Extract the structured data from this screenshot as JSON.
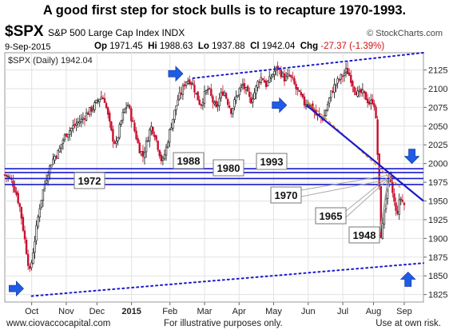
{
  "headline": "A good first step for stock bulls is to recapture 1970-1993.",
  "header": {
    "symbol": "$SPX",
    "name": "S&P 500 Large Cap Index INDX",
    "brand": "© StockCharts.com",
    "date": "9-Sep-2015",
    "open_label": "Op",
    "open": "1971.45",
    "high_label": "Hi",
    "high": "1988.63",
    "low_label": "Lo",
    "low": "1937.88",
    "close_label": "Cl",
    "close": "1942.04",
    "chg_label": "Chg",
    "chg": "-27.37 (-1.39%)"
  },
  "legend": "$SPX (Daily) 1942.04",
  "footer": {
    "left": "www.ciovaccocapital.com",
    "center": "For illustrative purposes only.",
    "right": "Use at own risk."
  },
  "chart_data": {
    "type": "candlestick",
    "ylim": [
      1815,
      2148
    ],
    "y_ticks": [
      1825,
      1850,
      1875,
      1900,
      1925,
      1950,
      1975,
      2000,
      2025,
      2050,
      2075,
      2100,
      2125
    ],
    "x_tick_labels": [
      "Oct",
      "Nov",
      "Dec",
      "2015",
      "Feb",
      "Mar",
      "Apr",
      "May",
      "Jun",
      "Jul",
      "Aug",
      "Sep"
    ],
    "x_tick_bold": [
      false,
      false,
      false,
      true,
      false,
      false,
      false,
      false,
      false,
      false,
      false,
      false
    ],
    "x_tick_positions": [
      0.07,
      0.16,
      0.24,
      0.33,
      0.43,
      0.52,
      0.61,
      0.7,
      0.79,
      0.88,
      0.96,
      1.04
    ],
    "grid": true,
    "support_levels": [
      1972,
      1980,
      1988,
      1993
    ],
    "level_labels": [
      {
        "text": "1972",
        "value": 1972
      },
      {
        "text": "1988",
        "value": 1988
      },
      {
        "text": "1980",
        "value": 1980
      },
      {
        "text": "1993",
        "value": 1993
      }
    ],
    "low_labels": [
      {
        "text": "1970",
        "value": 1970
      },
      {
        "text": "1965",
        "value": 1965
      },
      {
        "text": "1948",
        "value": 1948
      }
    ],
    "price_path": [
      [
        0.0,
        1985
      ],
      [
        0.01,
        1982
      ],
      [
        0.02,
        1975
      ],
      [
        0.03,
        1960
      ],
      [
        0.04,
        1940
      ],
      [
        0.05,
        1905
      ],
      [
        0.06,
        1870
      ],
      [
        0.065,
        1855
      ],
      [
        0.07,
        1870
      ],
      [
        0.08,
        1905
      ],
      [
        0.09,
        1940
      ],
      [
        0.1,
        1965
      ],
      [
        0.11,
        1985
      ],
      [
        0.12,
        2000
      ],
      [
        0.13,
        2010
      ],
      [
        0.14,
        2015
      ],
      [
        0.15,
        2030
      ],
      [
        0.16,
        2040
      ],
      [
        0.17,
        2045
      ],
      [
        0.18,
        2050
      ],
      [
        0.19,
        2055
      ],
      [
        0.2,
        2058
      ],
      [
        0.21,
        2065
      ],
      [
        0.22,
        2070
      ],
      [
        0.23,
        2075
      ],
      [
        0.24,
        2082
      ],
      [
        0.25,
        2090
      ],
      [
        0.26,
        2085
      ],
      [
        0.27,
        2060
      ],
      [
        0.28,
        2035
      ],
      [
        0.29,
        2025
      ],
      [
        0.3,
        2050
      ],
      [
        0.31,
        2070
      ],
      [
        0.32,
        2080
      ],
      [
        0.33,
        2060
      ],
      [
        0.34,
        2040
      ],
      [
        0.35,
        2020
      ],
      [
        0.36,
        2010
      ],
      [
        0.37,
        2030
      ],
      [
        0.38,
        2050
      ],
      [
        0.39,
        2040
      ],
      [
        0.4,
        2020
      ],
      [
        0.41,
        2000
      ],
      [
        0.42,
        2020
      ],
      [
        0.43,
        2045
      ],
      [
        0.44,
        2065
      ],
      [
        0.45,
        2085
      ],
      [
        0.46,
        2095
      ],
      [
        0.47,
        2110
      ],
      [
        0.48,
        2112
      ],
      [
        0.49,
        2105
      ],
      [
        0.5,
        2090
      ],
      [
        0.51,
        2078
      ],
      [
        0.52,
        2092
      ],
      [
        0.53,
        2100
      ],
      [
        0.54,
        2085
      ],
      [
        0.55,
        2072
      ],
      [
        0.56,
        2088
      ],
      [
        0.57,
        2098
      ],
      [
        0.58,
        2083
      ],
      [
        0.59,
        2070
      ],
      [
        0.6,
        2085
      ],
      [
        0.61,
        2098
      ],
      [
        0.62,
        2105
      ],
      [
        0.63,
        2095
      ],
      [
        0.64,
        2083
      ],
      [
        0.65,
        2095
      ],
      [
        0.66,
        2110
      ],
      [
        0.67,
        2116
      ],
      [
        0.68,
        2105
      ],
      [
        0.69,
        2112
      ],
      [
        0.7,
        2122
      ],
      [
        0.71,
        2128
      ],
      [
        0.72,
        2120
      ],
      [
        0.73,
        2112
      ],
      [
        0.74,
        2118
      ],
      [
        0.75,
        2110
      ],
      [
        0.76,
        2098
      ],
      [
        0.77,
        2090
      ],
      [
        0.78,
        2080
      ],
      [
        0.79,
        2082
      ],
      [
        0.8,
        2075
      ],
      [
        0.81,
        2065
      ],
      [
        0.82,
        2062
      ],
      [
        0.83,
        2060
      ],
      [
        0.84,
        2078
      ],
      [
        0.85,
        2095
      ],
      [
        0.86,
        2105
      ],
      [
        0.87,
        2112
      ],
      [
        0.88,
        2118
      ],
      [
        0.89,
        2125
      ],
      [
        0.9,
        2115
      ],
      [
        0.91,
        2100
      ],
      [
        0.92,
        2092
      ],
      [
        0.93,
        2095
      ],
      [
        0.94,
        2088
      ],
      [
        0.95,
        2080
      ],
      [
        0.96,
        2085
      ],
      [
        0.965,
        2070
      ],
      [
        0.97,
        2020
      ],
      [
        0.975,
        1965
      ],
      [
        0.98,
        1895
      ],
      [
        0.985,
        1925
      ],
      [
        0.99,
        1950
      ],
      [
        0.995,
        1965
      ],
      [
        1.0,
        1985
      ],
      [
        1.01,
        1960
      ],
      [
        1.02,
        1930
      ],
      [
        1.03,
        1955
      ],
      [
        1.04,
        1945
      ]
    ],
    "upper_channel": [
      [
        0.49,
        2114
      ],
      [
        1.09,
        2148
      ]
    ],
    "lower_channel": [
      [
        0.07,
        1823
      ],
      [
        1.09,
        1867
      ]
    ],
    "down_trend": [
      [
        0.785,
        2078
      ],
      [
        1.09,
        1950
      ]
    ],
    "down_trend_dashed": [
      [
        0.79,
        2082
      ],
      [
        1.03,
        1968
      ]
    ],
    "arrows": [
      {
        "dir": "right",
        "x": 0.03,
        "value": 1833
      },
      {
        "dir": "right",
        "x": 0.445,
        "value": 2120
      },
      {
        "dir": "right",
        "x": 0.715,
        "value": 2078
      },
      {
        "dir": "down",
        "x": 1.06,
        "value": 2000
      },
      {
        "dir": "up",
        "x": 1.05,
        "value": 1855
      }
    ]
  }
}
